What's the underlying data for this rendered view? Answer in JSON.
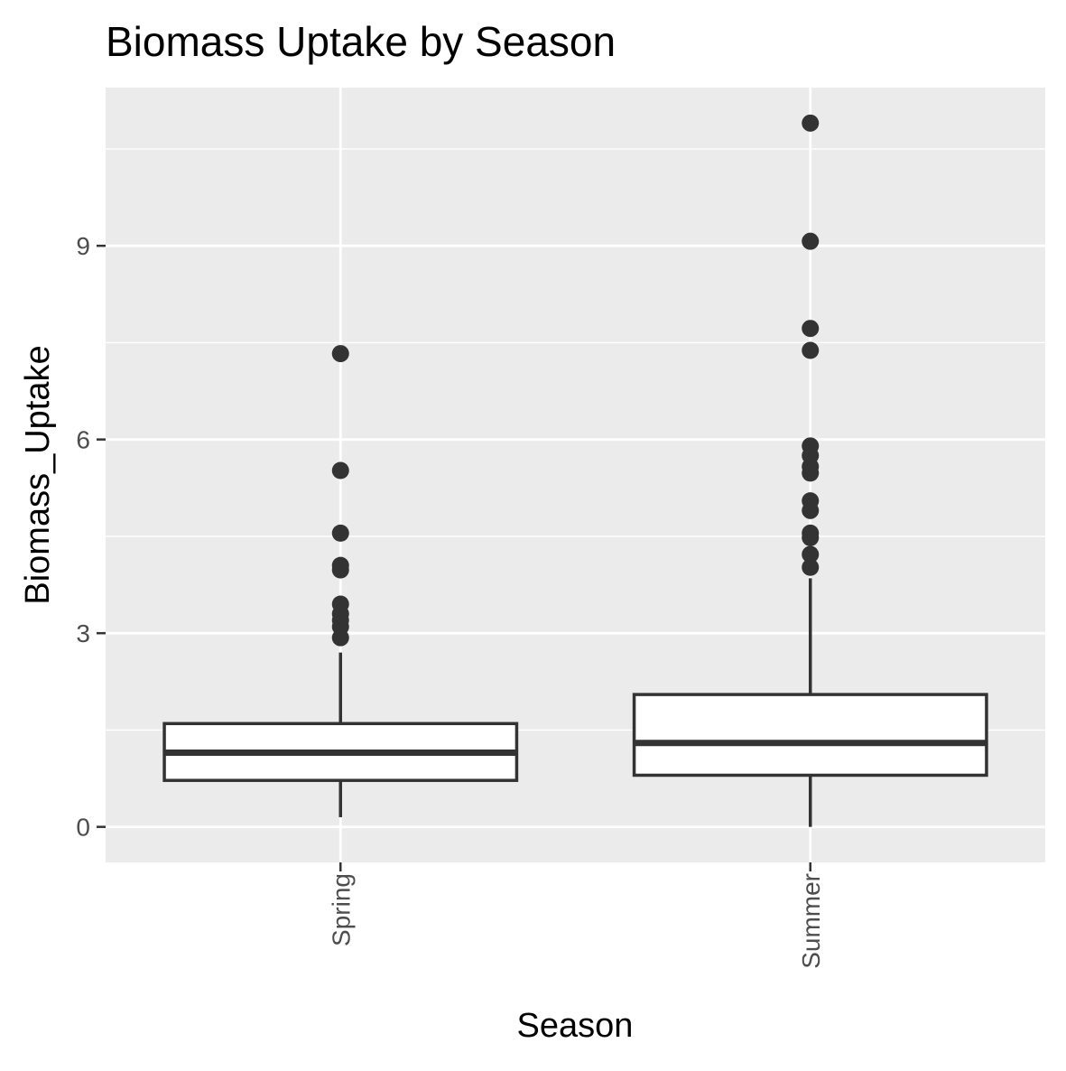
{
  "chart_data": {
    "type": "boxplot",
    "title": "Biomass Uptake by Season",
    "xlabel": "Season",
    "ylabel": "Biomass_Uptake",
    "ylim": [
      -0.55,
      11.45
    ],
    "y_ticks": [
      0,
      3,
      6,
      9
    ],
    "y_tick_labels": [
      "0",
      "3",
      "6",
      "9"
    ],
    "y_minor_ticks": [
      1.5,
      4.5,
      7.5,
      10.5
    ],
    "grid": true,
    "legend": "none",
    "colors": {
      "panel_background": "#ebebeb",
      "grid": "#ffffff",
      "box_fill": "#ffffff",
      "box_line": "#333333",
      "outlier": "#333333",
      "tick_text": "#4d4d4d"
    },
    "categories": [
      "Spring",
      "Summer"
    ],
    "boxes": [
      {
        "category": "Spring",
        "whisker_low": 0.15,
        "q1": 0.72,
        "median": 1.15,
        "q3": 1.6,
        "whisker_high": 2.7,
        "outliers": [
          2.93,
          3.1,
          3.2,
          3.3,
          3.45,
          3.98,
          4.05,
          4.55,
          5.52,
          7.33
        ]
      },
      {
        "category": "Summer",
        "whisker_low": 0.0,
        "q1": 0.8,
        "median": 1.3,
        "q3": 2.05,
        "whisker_high": 3.85,
        "outliers": [
          4.02,
          4.22,
          4.48,
          4.55,
          4.9,
          5.05,
          5.48,
          5.58,
          5.75,
          5.9,
          7.38,
          7.72,
          9.07,
          10.9
        ]
      }
    ]
  }
}
